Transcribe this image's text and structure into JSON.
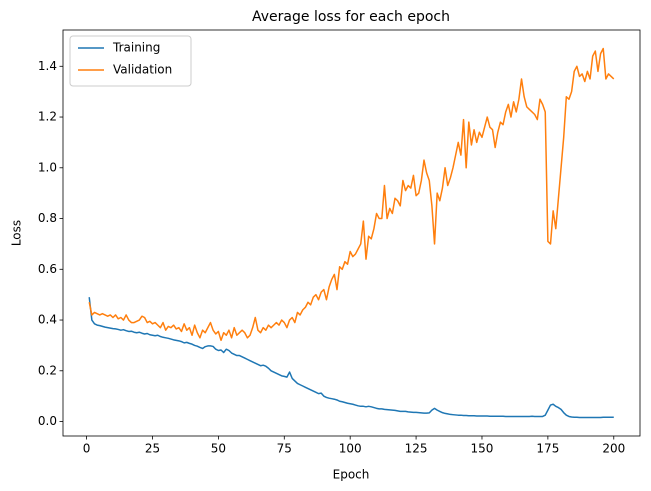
{
  "chart_data": {
    "type": "line",
    "title": "Average loss for each epoch",
    "x_label": "Epoch",
    "y_label": "Loss",
    "x": [
      1,
      2,
      3,
      4,
      5,
      6,
      7,
      8,
      9,
      10,
      11,
      12,
      13,
      14,
      15,
      16,
      17,
      18,
      19,
      20,
      21,
      22,
      23,
      24,
      25,
      26,
      27,
      28,
      29,
      30,
      31,
      32,
      33,
      34,
      35,
      36,
      37,
      38,
      39,
      40,
      41,
      42,
      43,
      44,
      45,
      46,
      47,
      48,
      49,
      50,
      51,
      52,
      53,
      54,
      55,
      56,
      57,
      58,
      59,
      60,
      61,
      62,
      63,
      64,
      65,
      66,
      67,
      68,
      69,
      70,
      71,
      72,
      73,
      74,
      75,
      76,
      77,
      78,
      79,
      80,
      81,
      82,
      83,
      84,
      85,
      86,
      87,
      88,
      89,
      90,
      91,
      92,
      93,
      94,
      95,
      96,
      97,
      98,
      99,
      100,
      101,
      102,
      103,
      104,
      105,
      106,
      107,
      108,
      109,
      110,
      111,
      112,
      113,
      114,
      115,
      116,
      117,
      118,
      119,
      120,
      121,
      122,
      123,
      124,
      125,
      126,
      127,
      128,
      129,
      130,
      131,
      132,
      133,
      134,
      135,
      136,
      137,
      138,
      139,
      140,
      141,
      142,
      143,
      144,
      145,
      146,
      147,
      148,
      149,
      150,
      151,
      152,
      153,
      154,
      155,
      156,
      157,
      158,
      159,
      160,
      161,
      162,
      163,
      164,
      165,
      166,
      167,
      168,
      169,
      170,
      171,
      172,
      173,
      174,
      175,
      176,
      177,
      178,
      179,
      180,
      181,
      182,
      183,
      184,
      185,
      186,
      187,
      188,
      189,
      190,
      191,
      192,
      193,
      194,
      195,
      196,
      197,
      198,
      199,
      200
    ],
    "series": [
      {
        "name": "Training",
        "color": "#1f77b4",
        "values": [
          0.49,
          0.4,
          0.385,
          0.38,
          0.378,
          0.375,
          0.372,
          0.37,
          0.368,
          0.366,
          0.365,
          0.363,
          0.36,
          0.362,
          0.358,
          0.355,
          0.356,
          0.352,
          0.35,
          0.352,
          0.348,
          0.345,
          0.347,
          0.342,
          0.34,
          0.338,
          0.34,
          0.335,
          0.332,
          0.33,
          0.328,
          0.325,
          0.322,
          0.32,
          0.318,
          0.315,
          0.31,
          0.312,
          0.308,
          0.305,
          0.3,
          0.297,
          0.292,
          0.288,
          0.295,
          0.298,
          0.298,
          0.296,
          0.285,
          0.28,
          0.282,
          0.272,
          0.285,
          0.28,
          0.27,
          0.265,
          0.26,
          0.26,
          0.255,
          0.25,
          0.245,
          0.24,
          0.235,
          0.23,
          0.225,
          0.22,
          0.222,
          0.218,
          0.21,
          0.2,
          0.195,
          0.19,
          0.185,
          0.18,
          0.178,
          0.175,
          0.195,
          0.17,
          0.16,
          0.15,
          0.145,
          0.14,
          0.135,
          0.13,
          0.125,
          0.12,
          0.115,
          0.11,
          0.112,
          0.1,
          0.095,
          0.092,
          0.09,
          0.088,
          0.085,
          0.08,
          0.078,
          0.075,
          0.072,
          0.07,
          0.068,
          0.065,
          0.062,
          0.06,
          0.06,
          0.058,
          0.06,
          0.058,
          0.055,
          0.052,
          0.05,
          0.05,
          0.048,
          0.047,
          0.046,
          0.045,
          0.044,
          0.042,
          0.04,
          0.04,
          0.04,
          0.038,
          0.037,
          0.036,
          0.036,
          0.035,
          0.034,
          0.033,
          0.033,
          0.034,
          0.045,
          0.052,
          0.045,
          0.04,
          0.035,
          0.032,
          0.03,
          0.028,
          0.027,
          0.026,
          0.025,
          0.025,
          0.024,
          0.024,
          0.023,
          0.023,
          0.023,
          0.022,
          0.022,
          0.022,
          0.022,
          0.022,
          0.021,
          0.021,
          0.021,
          0.021,
          0.021,
          0.021,
          0.02,
          0.02,
          0.02,
          0.02,
          0.02,
          0.02,
          0.02,
          0.02,
          0.02,
          0.02,
          0.021,
          0.02,
          0.02,
          0.02,
          0.02,
          0.025,
          0.045,
          0.065,
          0.068,
          0.06,
          0.055,
          0.048,
          0.035,
          0.025,
          0.02,
          0.018,
          0.017,
          0.017,
          0.016,
          0.016,
          0.016,
          0.016,
          0.016,
          0.016,
          0.016,
          0.016,
          0.016,
          0.017,
          0.017,
          0.017,
          0.017,
          0.017
        ]
      },
      {
        "name": "Validation",
        "color": "#ff7f0e",
        "values": [
          0.47,
          0.42,
          0.43,
          0.425,
          0.42,
          0.425,
          0.42,
          0.415,
          0.42,
          0.41,
          0.42,
          0.405,
          0.41,
          0.4,
          0.42,
          0.4,
          0.39,
          0.39,
          0.395,
          0.4,
          0.415,
          0.41,
          0.39,
          0.395,
          0.385,
          0.39,
          0.38,
          0.37,
          0.39,
          0.36,
          0.375,
          0.37,
          0.38,
          0.365,
          0.37,
          0.355,
          0.385,
          0.36,
          0.37,
          0.34,
          0.38,
          0.35,
          0.33,
          0.36,
          0.35,
          0.37,
          0.39,
          0.36,
          0.345,
          0.355,
          0.32,
          0.35,
          0.34,
          0.36,
          0.33,
          0.37,
          0.34,
          0.35,
          0.36,
          0.35,
          0.33,
          0.34,
          0.37,
          0.41,
          0.36,
          0.35,
          0.37,
          0.36,
          0.38,
          0.37,
          0.38,
          0.39,
          0.38,
          0.4,
          0.39,
          0.37,
          0.4,
          0.41,
          0.39,
          0.43,
          0.42,
          0.44,
          0.45,
          0.47,
          0.46,
          0.49,
          0.5,
          0.48,
          0.51,
          0.52,
          0.48,
          0.53,
          0.56,
          0.58,
          0.52,
          0.61,
          0.6,
          0.63,
          0.62,
          0.67,
          0.65,
          0.66,
          0.68,
          0.7,
          0.79,
          0.64,
          0.73,
          0.72,
          0.76,
          0.82,
          0.8,
          0.8,
          0.93,
          0.8,
          0.84,
          0.82,
          0.88,
          0.87,
          0.85,
          0.95,
          0.91,
          0.93,
          0.92,
          0.97,
          0.89,
          0.9,
          0.95,
          1.03,
          0.98,
          0.95,
          0.85,
          0.7,
          0.9,
          0.87,
          0.92,
          1.0,
          0.93,
          0.96,
          1.0,
          1.05,
          1.1,
          1.05,
          1.19,
          1.0,
          1.18,
          1.09,
          1.15,
          1.1,
          1.14,
          1.12,
          1.16,
          1.2,
          1.16,
          1.15,
          1.08,
          1.14,
          1.18,
          1.17,
          1.22,
          1.25,
          1.2,
          1.26,
          1.22,
          1.27,
          1.35,
          1.28,
          1.24,
          1.23,
          1.22,
          1.21,
          1.19,
          1.27,
          1.25,
          1.22,
          0.71,
          0.7,
          0.83,
          0.76,
          0.88,
          1.0,
          1.12,
          1.28,
          1.27,
          1.3,
          1.38,
          1.4,
          1.36,
          1.37,
          1.34,
          1.38,
          1.35,
          1.44,
          1.46,
          1.38,
          1.45,
          1.47,
          1.35,
          1.37,
          1.36,
          1.35
        ]
      }
    ],
    "xlim": [
      -8.95,
      209.95
    ],
    "xticks": [
      0,
      25,
      50,
      75,
      100,
      125,
      150,
      175,
      200
    ],
    "ylim": [
      -0.057,
      1.543
    ],
    "yticks": [
      {
        "value": 0,
        "label": "0.0"
      },
      0.2,
      0.4,
      0.6,
      0.8,
      {
        "value": 1,
        "label": "1.0"
      },
      1.2,
      1.4
    ],
    "legend": "upper left",
    "grid": false
  }
}
